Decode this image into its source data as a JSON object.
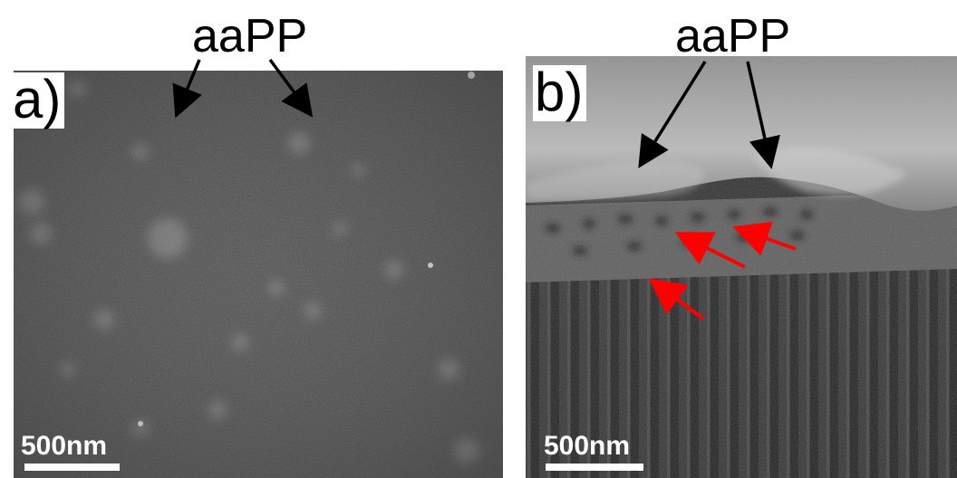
{
  "panel_a": {
    "heading": "aaPP",
    "letter": "a)",
    "scale_label": "500nm"
  },
  "panel_b": {
    "heading": "aaPP",
    "letter": "b)",
    "scale_label": "500nm"
  },
  "colors": {
    "pointer_arrow": "#000000",
    "highlight_arrow": "#ff0000",
    "scale_bar": "#ffffff"
  }
}
